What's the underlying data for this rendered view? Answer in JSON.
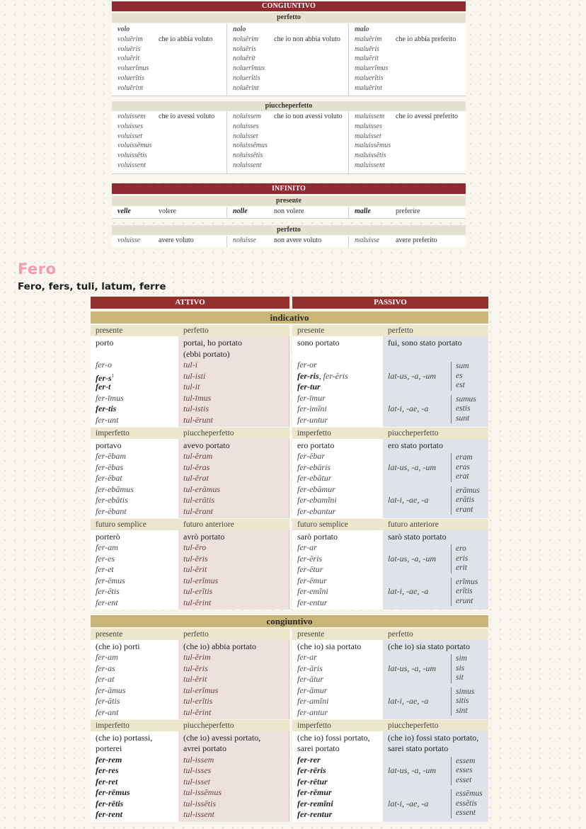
{
  "top": {
    "congiuntivo": {
      "title": "CONGIUNTIVO",
      "sections": [
        {
          "title": "perfetto",
          "cols": [
            {
              "verb": "volo",
              "forms": [
                "voluĕrim",
                "voluĕris",
                "voluĕrit",
                "voluerĭmus",
                "voluerĭtis",
                "voluĕrint"
              ],
              "trans": "che io abbia voluto"
            },
            {
              "verb": "nolo",
              "forms": [
                "noluĕrim",
                "noluĕris",
                "noluĕrit",
                "noluerĭmus",
                "noluerĭtis",
                "noluĕrint"
              ],
              "trans": "che io non abbia voluto"
            },
            {
              "verb": "malo",
              "forms": [
                "maluĕrim",
                "maluĕris",
                "maluĕrit",
                "maluerĭmus",
                "maluerĭtis",
                "maluĕrint"
              ],
              "trans": "che io abbia preferito"
            }
          ]
        },
        {
          "title": "piuccheperfetto",
          "cols": [
            {
              "forms": [
                "voluissem",
                "voluisses",
                "voluisset",
                "voluissēmus",
                "voluissētis",
                "voluissent"
              ],
              "trans": "che io avessi voluto"
            },
            {
              "forms": [
                "noluissem",
                "noluisses",
                "noluisset",
                "noluissēmus",
                "noluissētis",
                "noluissent"
              ],
              "trans": "che io non avessi voluto"
            },
            {
              "forms": [
                "maluissem",
                "maluisses",
                "maluisset",
                "maluissēmus",
                "maluissētis",
                "maluissent"
              ],
              "trans": "che io avessi preferito"
            }
          ]
        }
      ]
    },
    "infinito": {
      "title": "INFINITO",
      "sections": [
        {
          "title": "presente",
          "cols": [
            {
              "form": "velle",
              "trans": "volere"
            },
            {
              "form": "nolle",
              "trans": "non volere"
            },
            {
              "form": "malle",
              "trans": "preferire"
            }
          ]
        },
        {
          "title": "perfetto",
          "cols": [
            {
              "form": "voluisse",
              "trans": "avere voluto"
            },
            {
              "form": "noluisse",
              "trans": "non avere voluto"
            },
            {
              "form": "maluisse",
              "trans": "avere preferito"
            }
          ]
        }
      ]
    }
  },
  "heading": {
    "title": "Fero",
    "subtitle": "Fero, fers, tuli, latum, ferre"
  },
  "main": {
    "voices": [
      "ATTIVO",
      "PASSIVO"
    ],
    "colors": {
      "red": "#96302f",
      "gold": "#c9b577",
      "active_perfect": "#ece1dc",
      "passive_perfect": "#dee3ea"
    },
    "moods": [
      {
        "title": "indicativo",
        "blocks": [
          {
            "cols": [
              {
                "header": "presente",
                "lines": [
                  {
                    "t": "porto",
                    "s": "r"
                  },
                  {
                    "t": ""
                  },
                  {
                    "t": "fer-o"
                  },
                  {
                    "t": "fer-s",
                    "s": "b",
                    "sup": "1"
                  },
                  {
                    "t": "fer-t",
                    "s": "b"
                  },
                  {
                    "t": "fer-īmus"
                  },
                  {
                    "t": "fer-tis",
                    "s": "b"
                  },
                  {
                    "t": "fer-unt"
                  }
                ]
              },
              {
                "header": "perfetto",
                "lines": [
                  {
                    "t": "portai, ho portato",
                    "s": "r"
                  },
                  {
                    "t": "(ebbi portato)",
                    "s": "r"
                  },
                  {
                    "t": "tul-i"
                  },
                  {
                    "t": "tul-isti"
                  },
                  {
                    "t": "tul-it"
                  },
                  {
                    "t": "tul-īmus"
                  },
                  {
                    "t": "tul-istis"
                  },
                  {
                    "t": "tul-ērunt"
                  }
                ]
              },
              {
                "header": "presente",
                "lines": [
                  {
                    "t": "sono portato",
                    "s": "r"
                  },
                  {
                    "t": ""
                  },
                  {
                    "t": "fer-or"
                  },
                  {
                    "segs": [
                      {
                        "t": "fer-ris",
                        "s": "b"
                      },
                      {
                        "t": ", ",
                        "s": "i"
                      },
                      {
                        "t": "fer-ēris",
                        "s": "i"
                      }
                    ]
                  },
                  {
                    "t": "fer-tur",
                    "s": "b"
                  },
                  {
                    "t": "fer-īmur"
                  },
                  {
                    "t": "fer-imĭni"
                  },
                  {
                    "t": "fer-untur"
                  }
                ]
              },
              {
                "header": "perfetto",
                "lines": [
                  {
                    "t": "fui, sono stato portato",
                    "s": "r"
                  },
                  {
                    "t": ""
                  }
                ],
                "groups": [
                  {
                    "p": "lat-us, -a, -um",
                    "aux": [
                      "sum",
                      "es",
                      "est"
                    ]
                  },
                  {
                    "p": "lat-i, -ae, -a",
                    "aux": [
                      "sumus",
                      "estis",
                      "sunt"
                    ]
                  }
                ]
              }
            ]
          },
          {
            "cols": [
              {
                "header": "imperfetto",
                "lines": [
                  {
                    "t": "portavo",
                    "s": "r"
                  },
                  {
                    "t": "fer-ēbam"
                  },
                  {
                    "t": "fer-ēbas"
                  },
                  {
                    "t": "fer-ēbat"
                  },
                  {
                    "t": "fer-ebāmus"
                  },
                  {
                    "t": "fer-ebātis"
                  },
                  {
                    "t": "fer-ēbant"
                  }
                ]
              },
              {
                "header": "piuccheperfetto",
                "lines": [
                  {
                    "t": "avevo portato",
                    "s": "r"
                  },
                  {
                    "t": "tul-ĕram"
                  },
                  {
                    "t": "tul-ĕras"
                  },
                  {
                    "t": "tul-ĕrat"
                  },
                  {
                    "t": "tul-erāmus"
                  },
                  {
                    "t": "tul-erātis"
                  },
                  {
                    "t": "tul-ĕrant"
                  }
                ]
              },
              {
                "header": "imperfetto",
                "lines": [
                  {
                    "t": "ero portato",
                    "s": "r"
                  },
                  {
                    "t": "fer-ēbar"
                  },
                  {
                    "t": "fer-ebāris"
                  },
                  {
                    "t": "fer-ebātur"
                  },
                  {
                    "t": "fer-ebāmur"
                  },
                  {
                    "t": "fer-ebamĭni"
                  },
                  {
                    "t": "fer-ebantur"
                  }
                ]
              },
              {
                "header": "piuccheperfetto",
                "lines": [
                  {
                    "t": "ero stato portato",
                    "s": "r"
                  }
                ],
                "groups": [
                  {
                    "p": "lat-us, -a, -um",
                    "aux": [
                      "eram",
                      "eras",
                      "erat"
                    ]
                  },
                  {
                    "p": "lat-i, -ae, -a",
                    "aux": [
                      "erāmus",
                      "erātis",
                      "erant"
                    ]
                  }
                ]
              }
            ]
          },
          {
            "cols": [
              {
                "header": "futuro semplice",
                "lines": [
                  {
                    "t": "porterò",
                    "s": "r"
                  },
                  {
                    "t": "fer-am"
                  },
                  {
                    "t": "fer-es"
                  },
                  {
                    "t": "fer-et"
                  },
                  {
                    "t": "fer-ēmus"
                  },
                  {
                    "t": "fer-ētis"
                  },
                  {
                    "t": "fer-ent"
                  }
                ]
              },
              {
                "header": "futuro anteriore",
                "lines": [
                  {
                    "t": "avrò portato",
                    "s": "r"
                  },
                  {
                    "t": "tul-ĕro"
                  },
                  {
                    "t": "tul-ĕris"
                  },
                  {
                    "t": "tul-ĕrit"
                  },
                  {
                    "t": "tul-erĭmus"
                  },
                  {
                    "t": "tul-erĭtis"
                  },
                  {
                    "t": "tul-ĕrint"
                  }
                ]
              },
              {
                "header": "futuro semplice",
                "lines": [
                  {
                    "t": "sarò portato",
                    "s": "r"
                  },
                  {
                    "t": "fer-ar"
                  },
                  {
                    "t": "fer-ēris"
                  },
                  {
                    "t": "fer-ētur"
                  },
                  {
                    "t": "fer-ēmur"
                  },
                  {
                    "t": "fer-emĭni"
                  },
                  {
                    "t": "fer-entur"
                  }
                ]
              },
              {
                "header": "futuro anteriore",
                "lines": [
                  {
                    "t": "sarò stato portato",
                    "s": "r"
                  }
                ],
                "groups": [
                  {
                    "p": "lat-us, -a, -um",
                    "aux": [
                      "ero",
                      "eris",
                      "erit"
                    ]
                  },
                  {
                    "p": "lat-i, -ae, -a",
                    "aux": [
                      "erĭmus",
                      "erĭtis",
                      "erunt"
                    ]
                  }
                ]
              }
            ]
          }
        ]
      },
      {
        "title": "congiuntivo",
        "blocks": [
          {
            "cols": [
              {
                "header": "presente",
                "lines": [
                  {
                    "t": "(che io) porti",
                    "s": "r"
                  },
                  {
                    "t": "fer-am"
                  },
                  {
                    "t": "fer-as"
                  },
                  {
                    "t": "fer-at"
                  },
                  {
                    "t": "fer-āmus"
                  },
                  {
                    "t": "fer-ātis"
                  },
                  {
                    "t": "fer-ant"
                  }
                ]
              },
              {
                "header": "perfetto",
                "lines": [
                  {
                    "t": "(che io) abbia portato",
                    "s": "r"
                  },
                  {
                    "t": "tul-ĕrim"
                  },
                  {
                    "t": "tul-ĕris"
                  },
                  {
                    "t": "tul-ĕrit"
                  },
                  {
                    "t": "tul-erĭmus"
                  },
                  {
                    "t": "tul-erĭtis"
                  },
                  {
                    "t": "tul-ĕrint"
                  }
                ]
              },
              {
                "header": "presente",
                "lines": [
                  {
                    "t": "(che io) sia portato",
                    "s": "r"
                  },
                  {
                    "t": "fer-ar"
                  },
                  {
                    "t": "fer-āris"
                  },
                  {
                    "t": "fer-ātur"
                  },
                  {
                    "t": "fer-āmur"
                  },
                  {
                    "t": "fer-amĭni"
                  },
                  {
                    "t": "fer-antur"
                  }
                ]
              },
              {
                "header": "perfetto",
                "lines": [
                  {
                    "t": "(che io) sia stato portato",
                    "s": "r"
                  }
                ],
                "groups": [
                  {
                    "p": "lat-us, -a, -um",
                    "aux": [
                      "sim",
                      "sis",
                      "sit"
                    ]
                  },
                  {
                    "p": "lat-i, -ae, -a",
                    "aux": [
                      "simus",
                      "sitis",
                      "sint"
                    ]
                  }
                ]
              }
            ]
          },
          {
            "cols": [
              {
                "header": "imperfetto",
                "lines": [
                  {
                    "t": "(che io) portassi,",
                    "s": "r"
                  },
                  {
                    "t": "porterei",
                    "s": "r"
                  },
                  {
                    "t": "fer-rem",
                    "s": "b"
                  },
                  {
                    "t": "fer-res",
                    "s": "b"
                  },
                  {
                    "t": "fer-ret",
                    "s": "b"
                  },
                  {
                    "t": "fer-rēmus",
                    "s": "b"
                  },
                  {
                    "t": "fer-rētis",
                    "s": "b"
                  },
                  {
                    "t": "fer-rent",
                    "s": "b"
                  }
                ]
              },
              {
                "header": "piuccheperfetto",
                "lines": [
                  {
                    "t": "(che io) avessi portato,",
                    "s": "r"
                  },
                  {
                    "t": "avrei portato",
                    "s": "r"
                  },
                  {
                    "t": "tul-issem"
                  },
                  {
                    "t": "tul-isses"
                  },
                  {
                    "t": "tul-isset"
                  },
                  {
                    "t": "tul-issēmus"
                  },
                  {
                    "t": "tul-issētis"
                  },
                  {
                    "t": "tul-issent"
                  }
                ]
              },
              {
                "header": "imperfetto",
                "lines": [
                  {
                    "t": "(che io) fossi portato,",
                    "s": "r"
                  },
                  {
                    "t": "sarei portato",
                    "s": "r"
                  },
                  {
                    "t": "fer-rer",
                    "s": "b"
                  },
                  {
                    "t": "fer-rēris",
                    "s": "b"
                  },
                  {
                    "t": "fer-rētur",
                    "s": "b"
                  },
                  {
                    "t": "fer-rēmur",
                    "s": "b"
                  },
                  {
                    "t": "fer-remĭni",
                    "s": "b"
                  },
                  {
                    "t": "fer-rentur",
                    "s": "b"
                  }
                ]
              },
              {
                "header": "piuccheperfetto",
                "lines": [
                  {
                    "t": "(che io) fossi stato portato,",
                    "s": "r"
                  },
                  {
                    "t": "sarei stato portato",
                    "s": "r"
                  }
                ],
                "groups": [
                  {
                    "p": "lat-us, -a, -um",
                    "aux": [
                      "essem",
                      "esses",
                      "esset"
                    ]
                  },
                  {
                    "p": "lat-i, -ae, -a",
                    "aux": [
                      "essēmus",
                      "essētis",
                      "essent"
                    ]
                  }
                ]
              }
            ]
          }
        ]
      }
    ]
  }
}
